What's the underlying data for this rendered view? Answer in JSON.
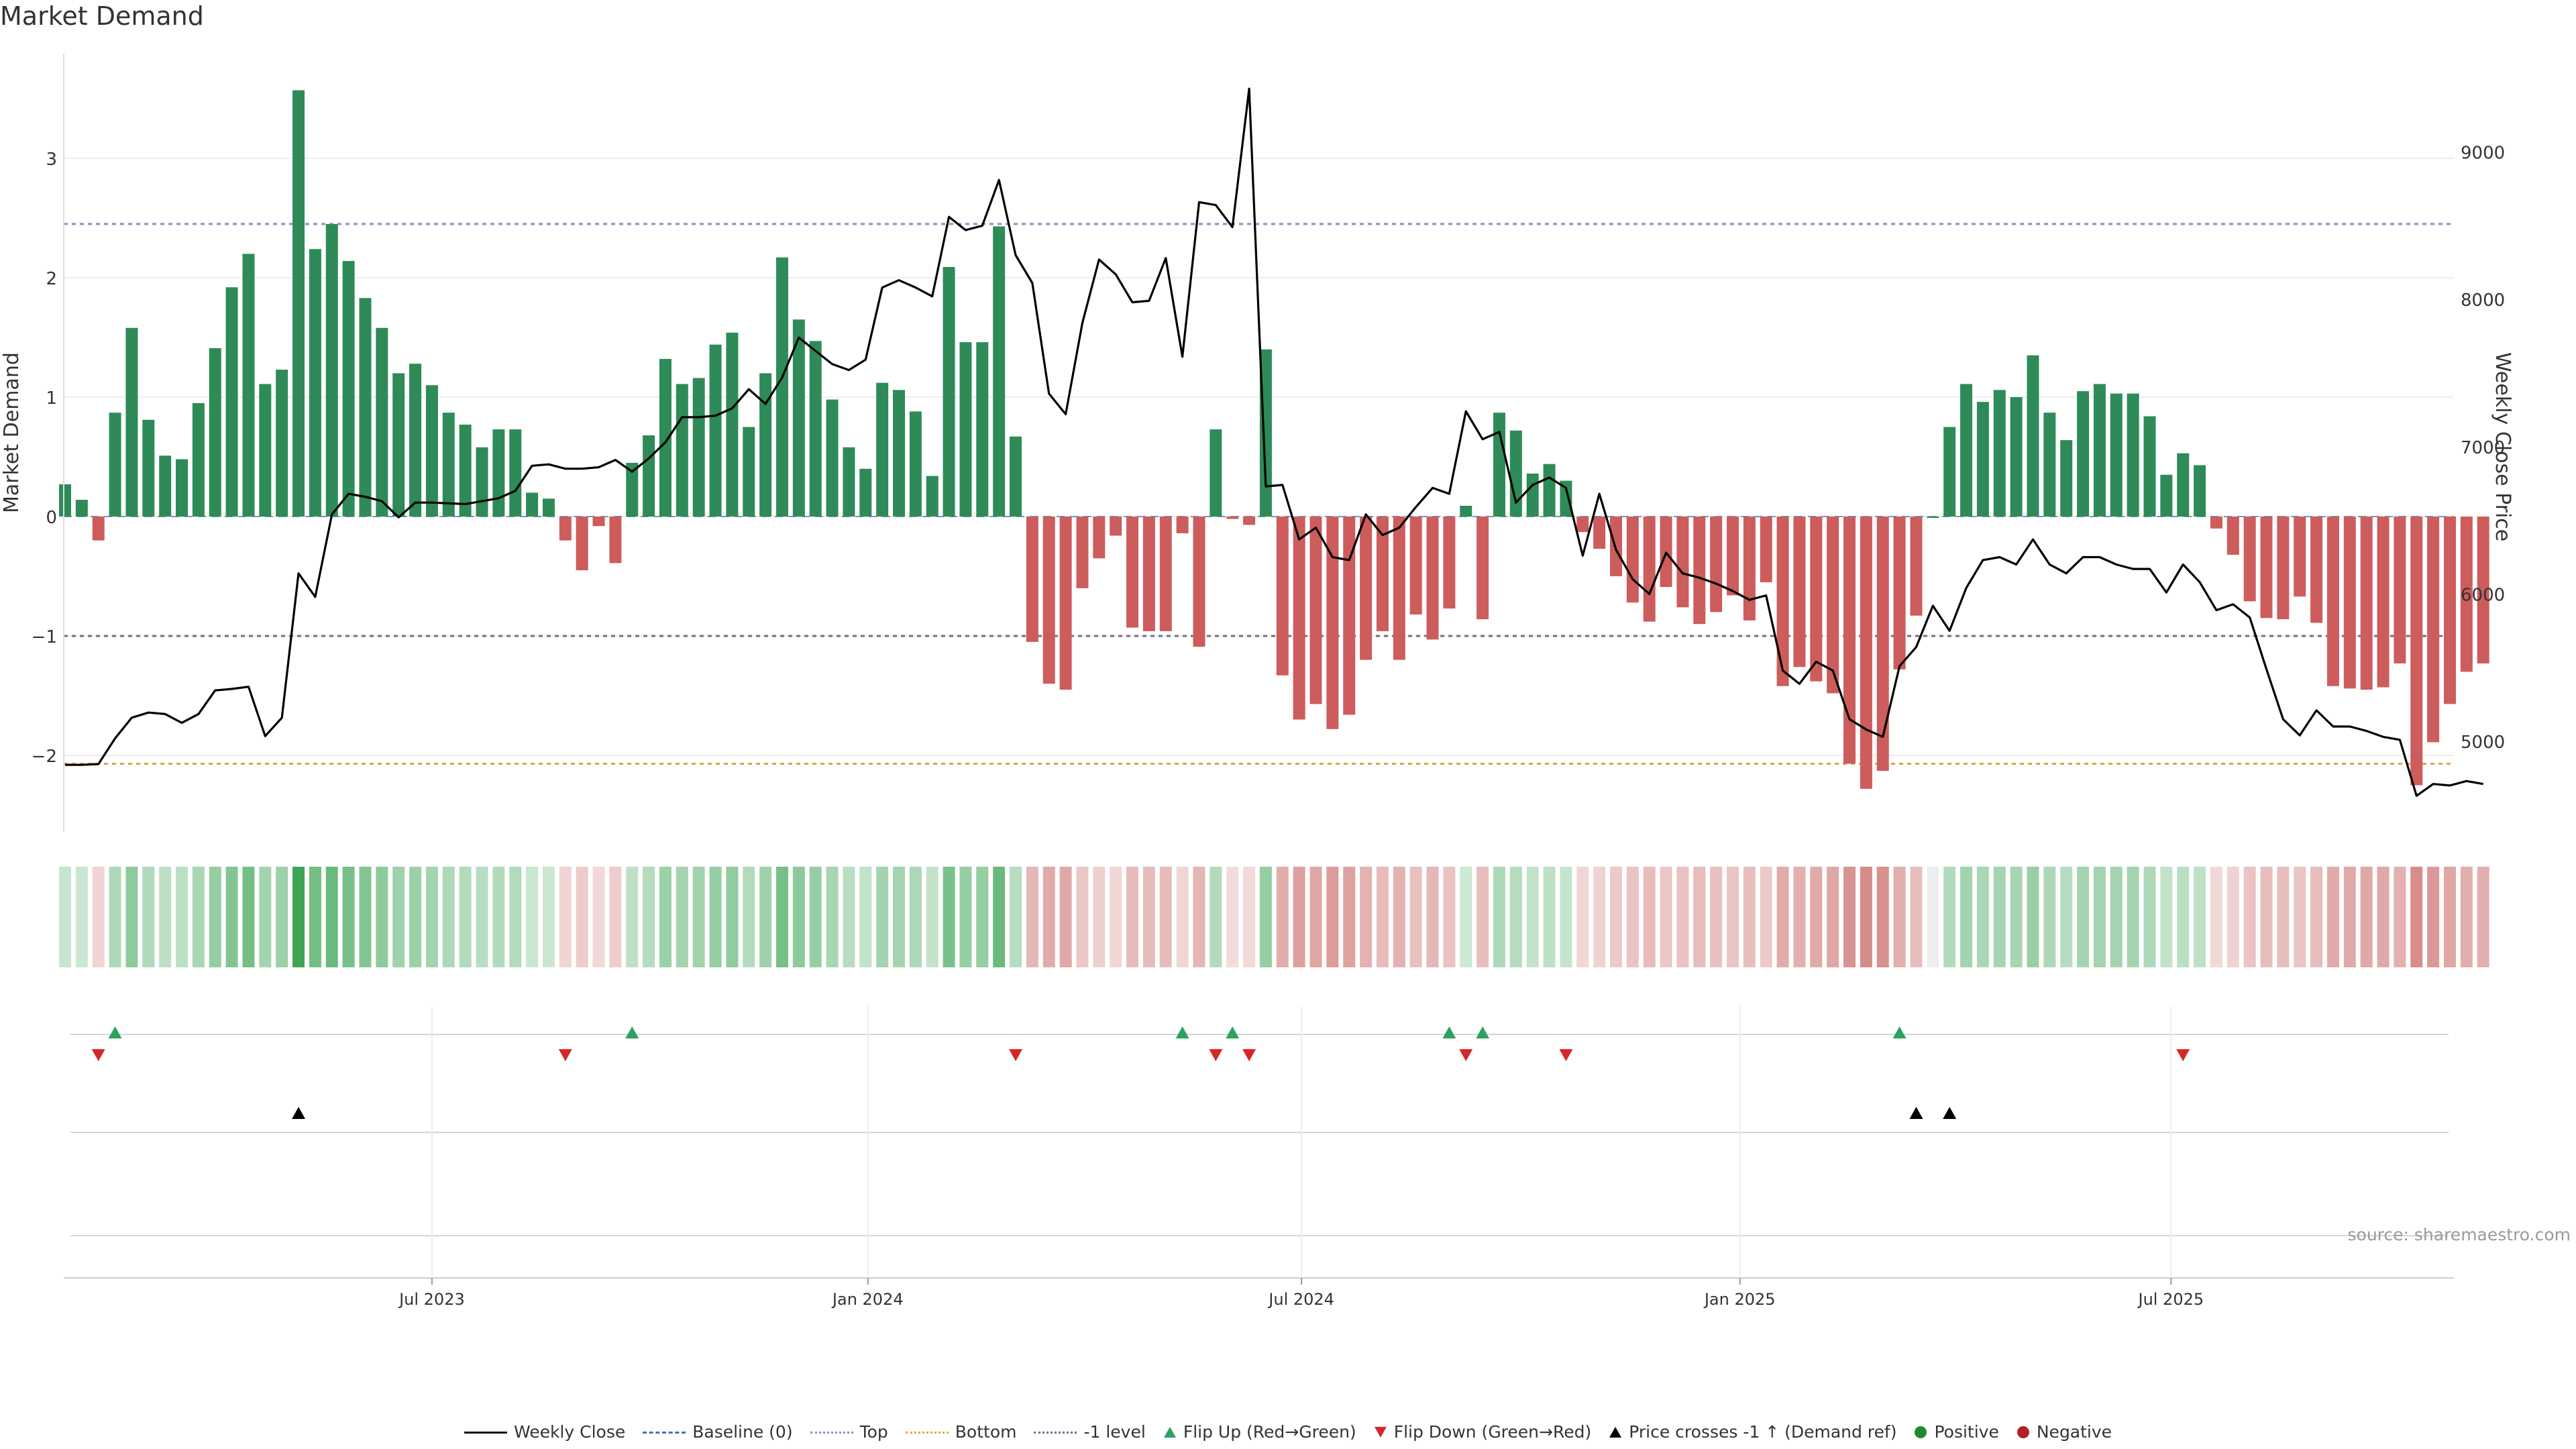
{
  "header": {
    "title": "Market Demand"
  },
  "axes": {
    "left_label": "Market Demand",
    "right_label": "Weekly Close Price"
  },
  "source": "source: sharemaestro.com",
  "colors": {
    "positive": "#2e8b57",
    "negative": "#cd5c5c",
    "price": "#000000",
    "top": "#9b86c9",
    "bottom": "#e8a04a",
    "minus1": "#6e6e8e",
    "flip_up": "#2ca25f",
    "flip_down": "#d62728"
  },
  "legend": {
    "items": [
      {
        "key": "weekly-close",
        "label": "Weekly Close"
      },
      {
        "key": "baseline",
        "label": "Baseline (0)"
      },
      {
        "key": "top",
        "label": "Top"
      },
      {
        "key": "bottom",
        "label": "Bottom"
      },
      {
        "key": "minus1",
        "label": "-1 level"
      },
      {
        "key": "flip-up",
        "label": "Flip Up (Red→Green)"
      },
      {
        "key": "flip-down",
        "label": "Flip Down (Green→Red)"
      },
      {
        "key": "price-cross",
        "label": "Price crosses -1 ↑ (Demand ref)"
      },
      {
        "key": "positive",
        "label": "Positive"
      },
      {
        "key": "negative",
        "label": "Negative"
      }
    ]
  },
  "chart_data": {
    "type": "bar",
    "title": "Market Demand",
    "ylabel": "Market Demand",
    "y2label": "Weekly Close Price",
    "ylim": [
      -2.6,
      3.9
    ],
    "yticks": [
      -2,
      -1,
      0,
      1,
      2,
      3
    ],
    "ytick_labels": [
      "−2",
      "−1",
      "0",
      "1",
      "2",
      "3"
    ],
    "y2lim": [
      4430,
      9700
    ],
    "y2ticks": [
      5000,
      6000,
      7000,
      8000,
      9000
    ],
    "y2tick_labels": [
      "5000",
      "6000",
      "7000",
      "8000",
      "9000"
    ],
    "reference_lines": {
      "top": 2.45,
      "bottom": -2.07,
      "minus1": -1.0,
      "baseline": 0
    },
    "x_start_week": 0,
    "x_ticks": [
      {
        "week": 22,
        "label": "Jul 2023"
      },
      {
        "week": 48.14,
        "label": "Jan 2024"
      },
      {
        "week": 74.14,
        "label": "Jul 2024"
      },
      {
        "week": 100.43,
        "label": "Jan 2025"
      },
      {
        "week": 126.28,
        "label": "Jul 2025"
      }
    ],
    "demand": [
      0.27,
      0.14,
      -0.2,
      0.87,
      1.58,
      0.81,
      0.51,
      0.48,
      0.95,
      1.41,
      1.92,
      2.2,
      1.11,
      1.23,
      3.57,
      2.24,
      2.45,
      2.14,
      1.83,
      1.58,
      1.2,
      1.28,
      1.1,
      0.87,
      0.77,
      0.58,
      0.73,
      0.73,
      0.2,
      0.15,
      -0.2,
      -0.45,
      -0.08,
      -0.39,
      0.45,
      0.68,
      1.32,
      1.11,
      1.16,
      1.44,
      1.54,
      0.75,
      1.2,
      2.17,
      1.65,
      1.47,
      0.98,
      0.58,
      0.4,
      1.12,
      1.06,
      0.88,
      0.34,
      2.09,
      1.46,
      1.46,
      2.43,
      0.67,
      -1.05,
      -1.4,
      -1.45,
      -0.6,
      -0.35,
      -0.16,
      -0.93,
      -0.96,
      -0.96,
      -0.14,
      -1.09,
      0.73,
      -0.02,
      -0.07,
      1.4,
      -1.33,
      -1.7,
      -1.57,
      -1.78,
      -1.66,
      -1.2,
      -0.96,
      -1.2,
      -0.82,
      -1.03,
      -0.77,
      0.09,
      -0.86,
      0.87,
      0.72,
      0.36,
      0.44,
      0.3,
      -0.13,
      -0.27,
      -0.5,
      -0.72,
      -0.88,
      -0.59,
      -0.76,
      -0.9,
      -0.8,
      -0.66,
      -0.87,
      -0.55,
      -1.42,
      -1.26,
      -1.38,
      -1.48,
      -2.07,
      -2.28,
      -2.13,
      -1.28,
      -0.83,
      0.0,
      0.75,
      1.11,
      0.96,
      1.06,
      1.0,
      1.35,
      0.87,
      0.64,
      1.05,
      1.11,
      1.03,
      1.03,
      0.84,
      0.35,
      0.53,
      0.43,
      -0.1,
      -0.32,
      -0.71,
      -0.85,
      -0.86,
      -0.67,
      -0.89,
      -1.42,
      -1.44,
      -1.45,
      -1.43,
      -1.23,
      -2.25,
      -1.89,
      -1.57,
      -1.3,
      -1.23
    ],
    "price": [
      4840,
      4840,
      4845,
      5020,
      5160,
      5195,
      5185,
      5125,
      5185,
      5345,
      5355,
      5370,
      5035,
      5160,
      6140,
      5980,
      6540,
      6680,
      6660,
      6630,
      6520,
      6620,
      6620,
      6615,
      6610,
      6630,
      6650,
      6700,
      6870,
      6880,
      6850,
      6850,
      6860,
      6910,
      6830,
      6920,
      7030,
      7200,
      7200,
      7210,
      7260,
      7390,
      7290,
      7470,
      7740,
      7650,
      7560,
      7520,
      7590,
      8080,
      8130,
      8080,
      8020,
      8560,
      8470,
      8500,
      8810,
      8300,
      8110,
      7360,
      7220,
      7840,
      8270,
      8170,
      7980,
      7990,
      8280,
      7610,
      8660,
      8640,
      8490,
      9430,
      6730,
      6740,
      6370,
      6450,
      6250,
      6230,
      6540,
      6400,
      6450,
      6590,
      6720,
      6680,
      7240,
      7050,
      7100,
      6620,
      6740,
      6790,
      6720,
      6260,
      6680,
      6300,
      6100,
      6000,
      6280,
      6140,
      6110,
      6070,
      6020,
      5960,
      5990,
      5480,
      5390,
      5540,
      5480,
      5150,
      5080,
      5030,
      5510,
      5640,
      5920,
      5750,
      6040,
      6230,
      6250,
      6200,
      6370,
      6200,
      6140,
      6250,
      6250,
      6200,
      6170,
      6170,
      6010,
      6200,
      6080,
      5890,
      5930,
      5840,
      5490,
      5150,
      5040,
      5210,
      5100,
      5100,
      5070,
      5030,
      5010,
      4630,
      4710,
      4700,
      4730,
      4710
    ],
    "flips_up": [
      3,
      34,
      67,
      70,
      83,
      85,
      110
    ],
    "flips_down": [
      2,
      30,
      57,
      69,
      71,
      84,
      90,
      127
    ],
    "price_crosses": [
      14,
      111,
      113
    ]
  }
}
